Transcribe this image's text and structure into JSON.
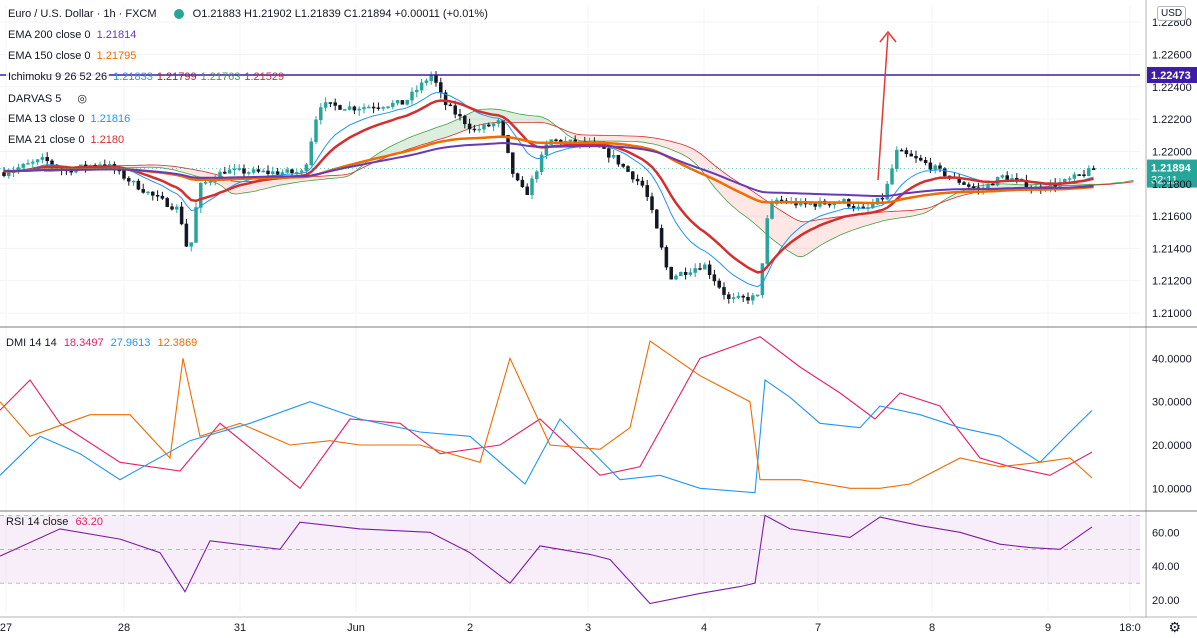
{
  "header": {
    "symbol": "Euro / U.S. Dollar · 1h · FXCM",
    "ohlc": "O1.21883  H1.21902  L1.21839  C1.21894  +0.00011 (+0.01%)"
  },
  "indicators": [
    {
      "label": "EMA 200 close 0",
      "value": "1.21814",
      "color": "#673ab7"
    },
    {
      "label": "EMA 150 close 0",
      "value": "1.21795",
      "color": "#ef6c00"
    },
    {
      "label": "Ichimoku 9 26 52 26",
      "values": [
        "1.21833",
        "1.21799",
        "1.21763",
        "1.21529"
      ],
      "colors": [
        "#2196f3",
        "#b71c1c",
        "#43a047",
        "#d32f2f"
      ]
    },
    {
      "label": "DARVAS 5",
      "value": "",
      "color": "#131722"
    },
    {
      "label": "EMA 13 close 0",
      "value": "1.21816",
      "color": "#2196f3"
    },
    {
      "label": "EMA 21 close 0",
      "value": "1.2180",
      "color": "#d32f2f"
    }
  ],
  "dmi_legend": {
    "label": "DMI 14 14",
    "values": [
      "18.3497",
      "27.9613",
      "12.3869"
    ],
    "colors": [
      "#e91e63",
      "#2196f3",
      "#ef6c00"
    ]
  },
  "rsi_legend": {
    "label": "RSI 14 close",
    "value": "63.20",
    "color": "#e91e63"
  },
  "axis": {
    "currency": "USD",
    "price_ticks": [
      "1.22800",
      "1.22600",
      "1.22400",
      "1.22200",
      "1.22000",
      "1.21800",
      "1.21600",
      "1.21400",
      "1.21200",
      "1.21000"
    ],
    "dmi_ticks": [
      "40.0000",
      "30.0000",
      "20.0000",
      "10.0000"
    ],
    "rsi_ticks": [
      "60.00",
      "40.00",
      "20.00"
    ],
    "time_labels": [
      "27",
      "28",
      "31",
      "Jun",
      "2",
      "3",
      "4",
      "7",
      "8",
      "9",
      "18:0"
    ],
    "hline_label": "1.22473",
    "last_price": "1.21894",
    "countdown": "32:11"
  },
  "colors": {
    "up": "#26a69a",
    "down": "#131722",
    "hline": "#3f1ca7",
    "arrow": "#e53935",
    "rsi_band": "#9c27b0"
  },
  "chart_data": [
    {
      "type": "candlestick",
      "title": "Euro / U.S. Dollar · 1h · FXCM",
      "ylim": [
        1.2092,
        1.229
      ],
      "hline": 1.22473,
      "last": 1.21894,
      "anchors": [
        {
          "t": 0,
          "p": 1.2187
        },
        {
          "t": 40,
          "p": 1.2195
        },
        {
          "t": 60,
          "p": 1.2188
        },
        {
          "t": 100,
          "p": 1.2193
        },
        {
          "t": 130,
          "p": 1.218
        },
        {
          "t": 150,
          "p": 1.2172
        },
        {
          "t": 175,
          "p": 1.2164
        },
        {
          "t": 185,
          "p": 1.2134
        },
        {
          "t": 195,
          "p": 1.2178
        },
        {
          "t": 220,
          "p": 1.2188
        },
        {
          "t": 260,
          "p": 1.2187
        },
        {
          "t": 300,
          "p": 1.2187
        },
        {
          "t": 315,
          "p": 1.2229
        },
        {
          "t": 350,
          "p": 1.2227
        },
        {
          "t": 400,
          "p": 1.223
        },
        {
          "t": 428,
          "p": 1.2248
        },
        {
          "t": 440,
          "p": 1.223
        },
        {
          "t": 470,
          "p": 1.2213
        },
        {
          "t": 495,
          "p": 1.2218
        },
        {
          "t": 510,
          "p": 1.2184
        },
        {
          "t": 522,
          "p": 1.2173
        },
        {
          "t": 545,
          "p": 1.2207
        },
        {
          "t": 590,
          "p": 1.2204
        },
        {
          "t": 610,
          "p": 1.2196
        },
        {
          "t": 640,
          "p": 1.2178
        },
        {
          "t": 650,
          "p": 1.2158
        },
        {
          "t": 665,
          "p": 1.2122
        },
        {
          "t": 700,
          "p": 1.213
        },
        {
          "t": 725,
          "p": 1.2108
        },
        {
          "t": 755,
          "p": 1.211
        },
        {
          "t": 762,
          "p": 1.2155
        },
        {
          "t": 770,
          "p": 1.217
        },
        {
          "t": 800,
          "p": 1.2167
        },
        {
          "t": 840,
          "p": 1.2169
        },
        {
          "t": 860,
          "p": 1.2163
        },
        {
          "t": 880,
          "p": 1.2172
        },
        {
          "t": 893,
          "p": 1.22
        },
        {
          "t": 920,
          "p": 1.2193
        },
        {
          "t": 950,
          "p": 1.2183
        },
        {
          "t": 975,
          "p": 1.2176
        },
        {
          "t": 1000,
          "p": 1.2185
        },
        {
          "t": 1030,
          "p": 1.2177
        },
        {
          "t": 1060,
          "p": 1.2181
        },
        {
          "t": 1092,
          "p": 1.21894
        }
      ]
    },
    {
      "type": "line",
      "title": "DMI 14 14",
      "ylim": [
        5,
        47
      ],
      "series": [
        {
          "values": [
            [
              0,
              28
            ],
            [
              30,
              35
            ],
            [
              60,
              25
            ],
            [
              120,
              16
            ],
            [
              180,
              14
            ],
            [
              220,
              25
            ],
            [
              300,
              10
            ],
            [
              350,
              26
            ],
            [
              400,
              25
            ],
            [
              440,
              18
            ],
            [
              500,
              20
            ],
            [
              540,
              26
            ],
            [
              600,
              13
            ],
            [
              640,
              15
            ],
            [
              700,
              40
            ],
            [
              760,
              45
            ],
            [
              800,
              38
            ],
            [
              840,
              32
            ],
            [
              875,
              26
            ],
            [
              900,
              32
            ],
            [
              940,
              29
            ],
            [
              980,
              17
            ],
            [
              1010,
              15
            ],
            [
              1050,
              13
            ],
            [
              1092,
              18.35
            ]
          ]
        },
        {
          "values": [
            [
              0,
              13
            ],
            [
              40,
              22
            ],
            [
              80,
              18
            ],
            [
              120,
              12
            ],
            [
              190,
              21
            ],
            [
              250,
              25
            ],
            [
              310,
              30
            ],
            [
              360,
              26
            ],
            [
              420,
              23
            ],
            [
              470,
              22
            ],
            [
              525,
              11
            ],
            [
              560,
              26
            ],
            [
              620,
              12
            ],
            [
              660,
              13
            ],
            [
              700,
              10
            ],
            [
              755,
              9
            ],
            [
              765,
              35
            ],
            [
              790,
              31
            ],
            [
              820,
              25
            ],
            [
              860,
              24
            ],
            [
              880,
              29
            ],
            [
              920,
              27
            ],
            [
              960,
              24
            ],
            [
              1000,
              22
            ],
            [
              1040,
              16
            ],
            [
              1070,
              23
            ],
            [
              1092,
              27.96
            ]
          ]
        },
        {
          "values": [
            [
              0,
              30
            ],
            [
              30,
              22
            ],
            [
              90,
              27
            ],
            [
              130,
              27
            ],
            [
              170,
              17
            ],
            [
              183,
              40
            ],
            [
              200,
              22
            ],
            [
              240,
              25
            ],
            [
              290,
              20
            ],
            [
              330,
              21
            ],
            [
              360,
              20
            ],
            [
              420,
              20
            ],
            [
              480,
              16
            ],
            [
              510,
              40
            ],
            [
              550,
              20
            ],
            [
              600,
              19
            ],
            [
              630,
              24
            ],
            [
              650,
              44
            ],
            [
              700,
              36
            ],
            [
              750,
              30
            ],
            [
              760,
              12
            ],
            [
              800,
              12
            ],
            [
              850,
              10
            ],
            [
              880,
              10
            ],
            [
              910,
              11
            ],
            [
              960,
              17
            ],
            [
              1000,
              15
            ],
            [
              1040,
              16
            ],
            [
              1070,
              17
            ],
            [
              1092,
              12.39
            ]
          ]
        }
      ]
    },
    {
      "type": "line",
      "title": "RSI 14 close",
      "ylim": [
        13,
        72
      ],
      "bands": [
        30,
        50,
        70
      ],
      "series": [
        {
          "values": [
            [
              0,
              46
            ],
            [
              60,
              62
            ],
            [
              120,
              56
            ],
            [
              160,
              48
            ],
            [
              185,
              25
            ],
            [
              210,
              55
            ],
            [
              280,
              50
            ],
            [
              300,
              66
            ],
            [
              360,
              62
            ],
            [
              430,
              60
            ],
            [
              470,
              48
            ],
            [
              510,
              30
            ],
            [
              540,
              52
            ],
            [
              590,
              47
            ],
            [
              610,
              44
            ],
            [
              650,
              18
            ],
            [
              700,
              24
            ],
            [
              740,
              28
            ],
            [
              755,
              30
            ],
            [
              765,
              70
            ],
            [
              790,
              62
            ],
            [
              850,
              57
            ],
            [
              880,
              69
            ],
            [
              920,
              64
            ],
            [
              960,
              60
            ],
            [
              1000,
              53
            ],
            [
              1030,
              51
            ],
            [
              1060,
              50
            ],
            [
              1092,
              63.2
            ]
          ]
        }
      ]
    }
  ]
}
